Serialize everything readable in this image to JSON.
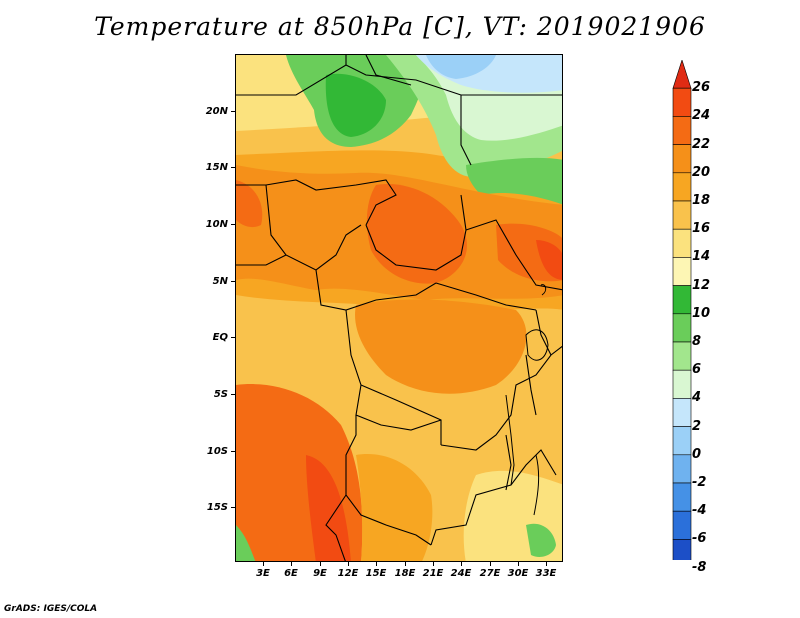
{
  "title": "Temperature at 850hPa [C], VT: 2019021906",
  "footer": "GrADS: IGES/COLA",
  "lat_labels": [
    "20N",
    "15N",
    "10N",
    "5N",
    "EQ",
    "5S",
    "10S",
    "15S"
  ],
  "lon_labels": [
    "3E",
    "6E",
    "9E",
    "12E",
    "15E",
    "18E",
    "21E",
    "24E",
    "27E",
    "30E",
    "33E"
  ],
  "colorbar": {
    "levels": [
      "26",
      "24",
      "22",
      "20",
      "18",
      "16",
      "14",
      "12",
      "10",
      "8",
      "6",
      "4",
      "2",
      "0",
      "-2",
      "-4",
      "-6",
      "-8"
    ],
    "colors": [
      "#e02b14",
      "#f24b12",
      "#f46b14",
      "#f59019",
      "#f7a622",
      "#f9c24c",
      "#fbe27e",
      "#fdf6b4",
      "#32b836",
      "#6acd5a",
      "#a2e68d",
      "#d9f7d2",
      "#c5e6fb",
      "#9bd0f7",
      "#6fb2ef",
      "#4591e6",
      "#2b70da",
      "#1c4fc7",
      "#0a2a9e"
    ]
  }
}
